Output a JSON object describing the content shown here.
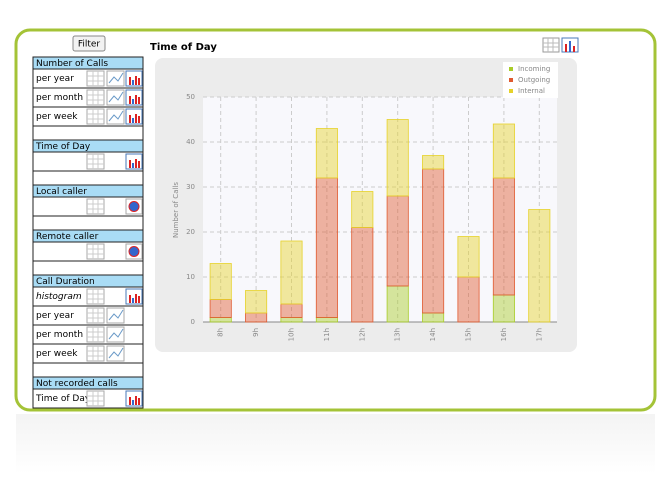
{
  "filter_button": "Filter",
  "sidebar": [
    {
      "title": "Number of Calls",
      "rows": [
        "per year",
        "per month",
        "per week"
      ]
    },
    {
      "title": "Time of Day",
      "rows": [
        null
      ]
    },
    {
      "title": "Local caller",
      "rows": [
        null
      ]
    },
    {
      "title": "Remote caller",
      "rows": [
        null
      ]
    },
    {
      "title": "Call Duration",
      "rows": [
        "histogram",
        "per year",
        "per month",
        "per week"
      ]
    },
    {
      "title": "Not recorded calls",
      "rows": [
        "Time of Day"
      ]
    }
  ],
  "chart_data": {
    "type": "stacked_bar",
    "title": "Time of Day",
    "y_label": "Number of Calls",
    "categories": [
      "8h",
      "9h",
      "10h",
      "11h",
      "12h",
      "13h",
      "14h",
      "15h",
      "16h",
      "17h"
    ],
    "series": [
      {
        "name": "Incoming",
        "color": "#a8cc28",
        "values": [
          1,
          0,
          1,
          1,
          0,
          8,
          2,
          0,
          6,
          0
        ]
      },
      {
        "name": "Outgoing",
        "color": "#e05a30",
        "values": [
          4,
          2,
          3,
          31,
          21,
          20,
          32,
          10,
          26,
          0
        ]
      },
      {
        "name": "Internal",
        "color": "#e6d22a",
        "values": [
          8,
          5,
          14,
          11,
          8,
          17,
          3,
          9,
          12,
          25
        ]
      }
    ],
    "ylim": [
      0,
      50
    ],
    "yticks": [
      0,
      10,
      20,
      30,
      40,
      50
    ],
    "grid": true,
    "legend": "top-right"
  }
}
